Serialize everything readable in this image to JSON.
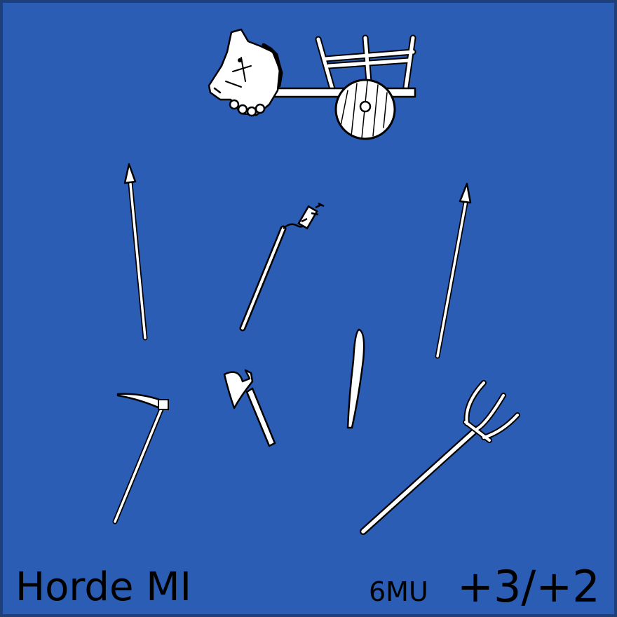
{
  "card": {
    "unit_name": "Horde MI",
    "movement": "6MU",
    "combat_factors": "+3/+2",
    "background_color": "#2a5db3",
    "border_color": "#1d3f7a"
  },
  "icons": [
    "horse-cart-icon",
    "spear-icon",
    "flail-icon",
    "spear-icon",
    "scythe-icon",
    "axe-icon",
    "club-icon",
    "pitchfork-icon"
  ]
}
